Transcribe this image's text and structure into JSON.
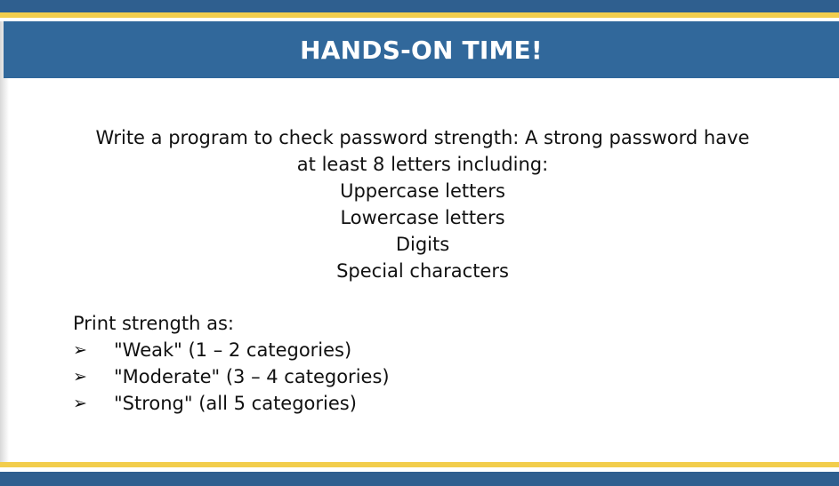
{
  "header": {
    "title": "HANDS-ON TIME!"
  },
  "task": {
    "lines": [
      "Write a program to check password strength: A strong password have",
      "at least 8 letters including:",
      "Uppercase letters",
      "Lowercase letters",
      "Digits",
      "Special characters"
    ]
  },
  "output_spec": {
    "heading": "Print strength as:",
    "bullet_glyph": "➢",
    "items": [
      "\"Weak\" (1 – 2 categories)",
      "\"Moderate\" (3 – 4 categories)",
      "\"Strong\" (all 5 categories)"
    ]
  },
  "colors": {
    "header_blue": "#31689b",
    "accent_gold": "#f2cd4c",
    "text": "#111111"
  }
}
